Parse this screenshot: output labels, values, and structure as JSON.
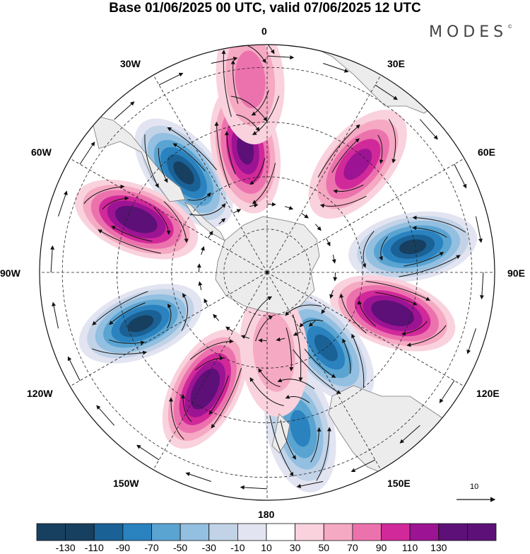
{
  "title": "Base 01/06/2025 00 UTC, valid 07/06/2025 12 UTC",
  "brand": {
    "name": "MODES",
    "mark": "©"
  },
  "meridian_labels": {
    "m0": "0",
    "m30e": "30E",
    "m60e": "60E",
    "m90e": "90E",
    "m120e": "120E",
    "m150e": "150E",
    "m180": "180",
    "m150w": "150W",
    "m120w": "120W",
    "m90w": "90W",
    "m60w": "60W",
    "m30w": "30W"
  },
  "reference_vector": {
    "value": "10"
  },
  "colorbar": {
    "labels": [
      "-130",
      "-110",
      "-90",
      "-70",
      "-50",
      "-30",
      "-10",
      "10",
      "30",
      "50",
      "70",
      "90",
      "110",
      "130"
    ],
    "colors": [
      "#173f5f",
      "#1a6196",
      "#2a82bf",
      "#5aa4d2",
      "#93bfe0",
      "#c2d3e8",
      "#e3e4f1",
      "#ffffff",
      "#f9d2dd",
      "#f5a9c3",
      "#ec72ad",
      "#d1299a",
      "#9c1493",
      "#5d1077"
    ]
  },
  "map": {
    "projection": "south-polar-stereographic",
    "features": [
      "shaded anomaly field",
      "streamlines",
      "coastlines",
      "lat-lon dashed grid"
    ],
    "anomalies": [
      {
        "lon": -40,
        "r": 0.57,
        "value": -130
      },
      {
        "lon": -10,
        "r": 0.55,
        "value": 110
      },
      {
        "lon": 40,
        "r": 0.62,
        "value": 90
      },
      {
        "lon": 80,
        "r": 0.65,
        "value": -130
      },
      {
        "lon": 108,
        "r": 0.58,
        "value": 130
      },
      {
        "lon": 142,
        "r": 0.42,
        "value": -110
      },
      {
        "lon": 168,
        "r": 0.7,
        "value": -90
      },
      {
        "lon": -152,
        "r": 0.58,
        "value": 130
      },
      {
        "lon": -112,
        "r": 0.6,
        "value": -130
      },
      {
        "lon": -68,
        "r": 0.62,
        "value": 130
      },
      {
        "lon": 175,
        "r": 0.35,
        "value": 30
      },
      {
        "lon": -5,
        "r": 0.85,
        "value": 50
      }
    ]
  }
}
